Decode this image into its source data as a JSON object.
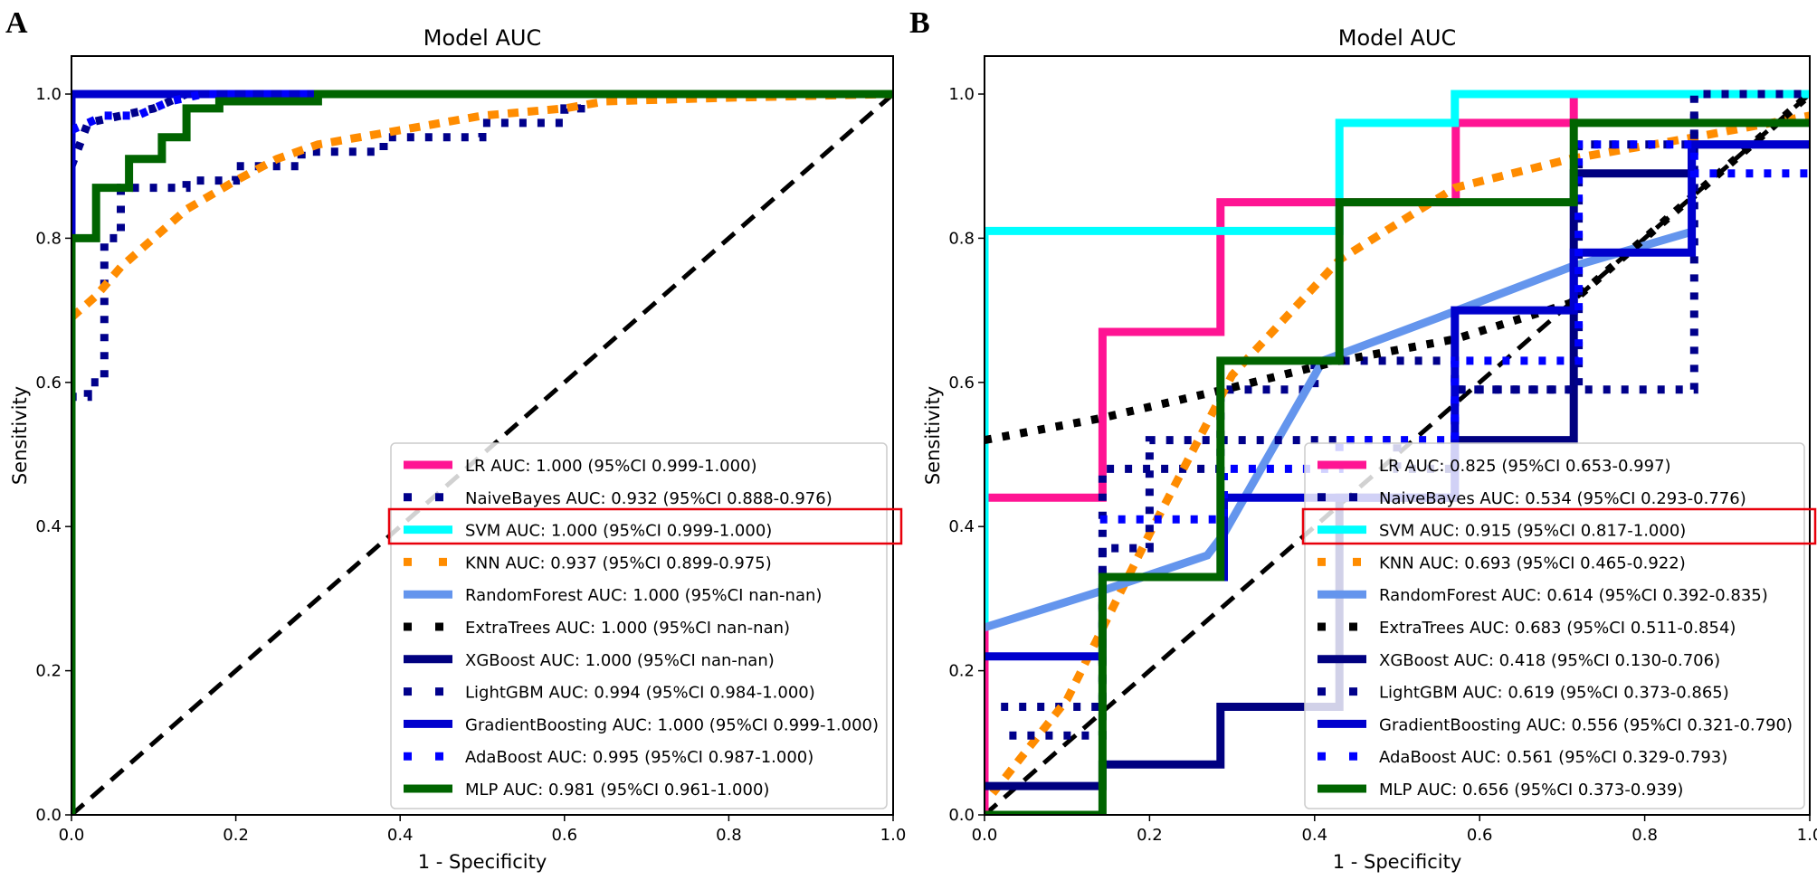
{
  "chart_data": [
    {
      "type": "line",
      "panel": "A",
      "title": "Model AUC",
      "xlabel": "1 - Specificity",
      "ylabel": "Sensitivity",
      "xlim": [
        0,
        1
      ],
      "ylim": [
        0,
        1
      ],
      "xticks": [
        "0.0",
        "0.2",
        "0.4",
        "0.6",
        "0.8",
        "1.0"
      ],
      "yticks": [
        "0.0",
        "0.2",
        "0.4",
        "0.6",
        "0.8",
        "1.0"
      ],
      "legend_position": "lower-right",
      "highlighted_entry": "SVM",
      "series": [
        {
          "name": "LR",
          "label": "LR AUC: 1.000 (95%CI 0.999-1.000)",
          "color": "#ff1493",
          "style": "solid",
          "points": [
            [
              0,
              0
            ],
            [
              0,
              1
            ],
            [
              1,
              1
            ]
          ]
        },
        {
          "name": "NaiveBayes",
          "label": "NaiveBayes AUC: 0.932 (95%CI 0.888-0.976)",
          "color": "#00008b",
          "style": "dotted",
          "points": [
            [
              0,
              0
            ],
            [
              0,
              0.58
            ],
            [
              0.02,
              0.58
            ],
            [
              0.02,
              0.6
            ],
            [
              0.04,
              0.6
            ],
            [
              0.04,
              0.8
            ],
            [
              0.06,
              0.8
            ],
            [
              0.06,
              0.87
            ],
            [
              0.14,
              0.87
            ],
            [
              0.14,
              0.88
            ],
            [
              0.2,
              0.88
            ],
            [
              0.2,
              0.9
            ],
            [
              0.28,
              0.9
            ],
            [
              0.28,
              0.92
            ],
            [
              0.38,
              0.92
            ],
            [
              0.38,
              0.94
            ],
            [
              0.5,
              0.94
            ],
            [
              0.5,
              0.96
            ],
            [
              0.6,
              0.96
            ],
            [
              0.6,
              0.98
            ],
            [
              0.62,
              0.98
            ],
            [
              0.62,
              1
            ],
            [
              1,
              1
            ]
          ]
        },
        {
          "name": "SVM",
          "label": "SVM AUC: 1.000 (95%CI 0.999-1.000)",
          "color": "#00ffff",
          "style": "solid",
          "points": [
            [
              0,
              0
            ],
            [
              0,
              1
            ],
            [
              1,
              1
            ]
          ]
        },
        {
          "name": "KNN",
          "label": "KNN AUC: 0.937 (95%CI 0.899-0.975)",
          "color": "#ff8c00",
          "style": "dashed",
          "points": [
            [
              0,
              0.69
            ],
            [
              0.01,
              0.7
            ],
            [
              0.03,
              0.72
            ],
            [
              0.06,
              0.76
            ],
            [
              0.1,
              0.8
            ],
            [
              0.14,
              0.84
            ],
            [
              0.2,
              0.88
            ],
            [
              0.25,
              0.91
            ],
            [
              0.3,
              0.93
            ],
            [
              0.4,
              0.95
            ],
            [
              0.5,
              0.97
            ],
            [
              0.6,
              0.98
            ],
            [
              0.65,
              0.99
            ],
            [
              0.8,
              0.995
            ],
            [
              1,
              1
            ]
          ]
        },
        {
          "name": "RandomForest",
          "label": "RandomForest AUC: 1.000 (95%CI nan-nan)",
          "color": "#6495ed",
          "style": "solid",
          "points": [
            [
              0,
              0
            ],
            [
              0,
              1
            ],
            [
              1,
              1
            ]
          ]
        },
        {
          "name": "ExtraTrees",
          "label": "ExtraTrees AUC: 1.000 (95%CI nan-nan)",
          "color": "#000000",
          "style": "dotted",
          "points": [
            [
              0,
              0
            ],
            [
              0,
              1
            ],
            [
              1,
              1
            ]
          ]
        },
        {
          "name": "XGBoost",
          "label": "XGBoost AUC: 1.000 (95%CI nan-nan)",
          "color": "#000080",
          "style": "solid",
          "points": [
            [
              0,
              0
            ],
            [
              0,
              1
            ],
            [
              1,
              1
            ]
          ]
        },
        {
          "name": "LightGBM",
          "label": "LightGBM AUC: 0.994 (95%CI 0.984-1.000)",
          "color": "#00008b",
          "style": "dotted",
          "points": [
            [
              0,
              0.9
            ],
            [
              0.02,
              0.96
            ],
            [
              0.06,
              0.97
            ],
            [
              0.1,
              0.98
            ],
            [
              0.14,
              1
            ],
            [
              1,
              1
            ]
          ]
        },
        {
          "name": "GradientBoosting",
          "label": "GradientBoosting AUC: 1.000 (95%CI 0.999-1.000)",
          "color": "#0000cd",
          "style": "solid",
          "points": [
            [
              0,
              0
            ],
            [
              0,
              1
            ],
            [
              0.29,
              1
            ],
            [
              1,
              1
            ]
          ]
        },
        {
          "name": "AdaBoost",
          "label": "AdaBoost AUC: 0.995 (95%CI 0.987-1.000)",
          "color": "#0000ff",
          "style": "dotted",
          "points": [
            [
              0,
              0.95
            ],
            [
              0.02,
              0.96
            ],
            [
              0.04,
              0.97
            ],
            [
              0.08,
              0.97
            ],
            [
              0.12,
              0.99
            ],
            [
              0.16,
              1
            ],
            [
              1,
              1
            ]
          ]
        },
        {
          "name": "MLP",
          "label": "MLP AUC: 0.981 (95%CI 0.961-1.000)",
          "color": "#006400",
          "style": "solid",
          "points": [
            [
              0,
              0
            ],
            [
              0,
              0.8
            ],
            [
              0.03,
              0.8
            ],
            [
              0.03,
              0.87
            ],
            [
              0.07,
              0.87
            ],
            [
              0.07,
              0.91
            ],
            [
              0.11,
              0.91
            ],
            [
              0.11,
              0.94
            ],
            [
              0.14,
              0.94
            ],
            [
              0.14,
              0.98
            ],
            [
              0.18,
              0.98
            ],
            [
              0.18,
              0.99
            ],
            [
              0.3,
              0.99
            ],
            [
              0.3,
              1
            ],
            [
              1,
              1
            ]
          ]
        }
      ],
      "reference_line": [
        [
          0,
          0
        ],
        [
          1,
          1
        ]
      ]
    },
    {
      "type": "line",
      "panel": "B",
      "title": "Model AUC",
      "xlabel": "1 - Specificity",
      "ylabel": "Sensitivity",
      "xlim": [
        0,
        1
      ],
      "ylim": [
        0,
        1
      ],
      "xticks": [
        "0.0",
        "0.2",
        "0.4",
        "0.6",
        "0.8",
        "1.0"
      ],
      "yticks": [
        "0.0",
        "0.2",
        "0.4",
        "0.6",
        "0.8",
        "1.0"
      ],
      "legend_position": "lower-right",
      "highlighted_entry": "SVM",
      "series": [
        {
          "name": "LR",
          "label": "LR AUC: 0.825 (95%CI 0.653-0.997)",
          "color": "#ff1493",
          "style": "solid",
          "points": [
            [
              0,
              0
            ],
            [
              0,
              0.44
            ],
            [
              0.143,
              0.44
            ],
            [
              0.143,
              0.67
            ],
            [
              0.286,
              0.67
            ],
            [
              0.286,
              0.85
            ],
            [
              0.571,
              0.85
            ],
            [
              0.571,
              0.96
            ],
            [
              0.714,
              0.96
            ],
            [
              0.714,
              1
            ],
            [
              1,
              1
            ]
          ]
        },
        {
          "name": "NaiveBayes",
          "label": "NaiveBayes AUC: 0.534 (95%CI 0.293-0.776)",
          "color": "#00008b",
          "style": "dotted",
          "points": [
            [
              0.02,
              0.15
            ],
            [
              0.143,
              0.15
            ],
            [
              0.143,
              0.48
            ],
            [
              0.286,
              0.48
            ],
            [
              0.286,
              0.59
            ],
            [
              0.4,
              0.59
            ],
            [
              0.4,
              0.63
            ],
            [
              0.57,
              0.63
            ],
            [
              0.57,
              0.59
            ],
            [
              0.86,
              0.59
            ],
            [
              0.86,
              1
            ],
            [
              1,
              1
            ]
          ]
        },
        {
          "name": "SVM",
          "label": "SVM AUC: 0.915 (95%CI 0.817-1.000)",
          "color": "#00ffff",
          "style": "solid",
          "points": [
            [
              0,
              0.26
            ],
            [
              0,
              0.81
            ],
            [
              0.43,
              0.81
            ],
            [
              0.43,
              0.96
            ],
            [
              0.57,
              0.96
            ],
            [
              0.57,
              1
            ],
            [
              1,
              1
            ]
          ]
        },
        {
          "name": "KNN",
          "label": "KNN AUC: 0.693 (95%CI 0.465-0.922)",
          "color": "#ff8c00",
          "style": "dashed",
          "points": [
            [
              0.01,
              0.03
            ],
            [
              0.1,
              0.16
            ],
            [
              0.2,
              0.39
            ],
            [
              0.3,
              0.61
            ],
            [
              0.43,
              0.77
            ],
            [
              0.57,
              0.87
            ],
            [
              0.71,
              0.91
            ],
            [
              0.86,
              0.94
            ],
            [
              1,
              0.97
            ]
          ]
        },
        {
          "name": "RandomForest",
          "label": "RandomForest AUC: 0.614 (95%CI 0.392-0.835)",
          "color": "#6495ed",
          "style": "solid",
          "points": [
            [
              0,
              0.26
            ],
            [
              0.14,
              0.31
            ],
            [
              0.27,
              0.36
            ],
            [
              0.29,
              0.39
            ],
            [
              0.41,
              0.63
            ],
            [
              0.55,
              0.69
            ],
            [
              0.71,
              0.76
            ],
            [
              0.86,
              0.81
            ]
          ]
        },
        {
          "name": "ExtraTrees",
          "label": "ExtraTrees AUC: 0.683 (95%CI 0.511-0.854)",
          "color": "#000000",
          "style": "dotted",
          "points": [
            [
              0,
              0.52
            ],
            [
              0.14,
              0.55
            ],
            [
              0.29,
              0.59
            ],
            [
              0.43,
              0.63
            ],
            [
              0.57,
              0.66
            ],
            [
              0.71,
              0.71
            ],
            [
              0.86,
              0.86
            ],
            [
              1,
              1
            ]
          ]
        },
        {
          "name": "XGBoost",
          "label": "XGBoost AUC: 0.418 (95%CI 0.130-0.706)",
          "color": "#000080",
          "style": "solid",
          "points": [
            [
              0,
              0.04
            ],
            [
              0.143,
              0.04
            ],
            [
              0.143,
              0.07
            ],
            [
              0.286,
              0.07
            ],
            [
              0.286,
              0.15
            ],
            [
              0.43,
              0.15
            ],
            [
              0.43,
              0.44
            ],
            [
              0.57,
              0.44
            ],
            [
              0.57,
              0.52
            ],
            [
              0.714,
              0.52
            ],
            [
              0.714,
              0.89
            ],
            [
              0.857,
              0.89
            ],
            [
              0.857,
              0.93
            ],
            [
              1,
              0.93
            ]
          ]
        },
        {
          "name": "LightGBM",
          "label": "LightGBM AUC: 0.619 (95%CI 0.373-0.865)",
          "color": "#00008b",
          "style": "dotted",
          "points": [
            [
              0.03,
              0.11
            ],
            [
              0.143,
              0.11
            ],
            [
              0.143,
              0.37
            ],
            [
              0.2,
              0.37
            ],
            [
              0.2,
              0.52
            ],
            [
              0.5,
              0.52
            ],
            [
              0.5,
              0.48
            ],
            [
              0.57,
              0.48
            ],
            [
              0.57,
              0.59
            ],
            [
              0.72,
              0.59
            ],
            [
              0.72,
              0.93
            ],
            [
              0.86,
              0.93
            ],
            [
              0.86,
              1
            ],
            [
              1,
              1
            ]
          ]
        },
        {
          "name": "GradientBoosting",
          "label": "GradientBoosting AUC: 0.556 (95%CI 0.321-0.790)",
          "color": "#0000cd",
          "style": "solid",
          "points": [
            [
              0,
              0.22
            ],
            [
              0.143,
              0.22
            ],
            [
              0.143,
              0.33
            ],
            [
              0.29,
              0.33
            ],
            [
              0.29,
              0.44
            ],
            [
              0.57,
              0.44
            ],
            [
              0.57,
              0.7
            ],
            [
              0.714,
              0.7
            ],
            [
              0.714,
              0.78
            ],
            [
              0.857,
              0.78
            ],
            [
              0.857,
              0.93
            ],
            [
              1,
              0.93
            ]
          ]
        },
        {
          "name": "AdaBoost",
          "label": "AdaBoost AUC: 0.561 (95%CI 0.329-0.793)",
          "color": "#0000ff",
          "style": "dotted",
          "points": [
            [
              0.14,
              0.41
            ],
            [
              0.29,
              0.41
            ],
            [
              0.29,
              0.48
            ],
            [
              0.43,
              0.48
            ],
            [
              0.43,
              0.52
            ],
            [
              0.57,
              0.52
            ],
            [
              0.57,
              0.63
            ],
            [
              0.72,
              0.63
            ],
            [
              0.72,
              0.93
            ],
            [
              0.86,
              0.93
            ],
            [
              0.86,
              0.89
            ],
            [
              1,
              0.89
            ]
          ]
        },
        {
          "name": "MLP",
          "label": "MLP AUC: 0.656 (95%CI 0.373-0.939)",
          "color": "#006400",
          "style": "solid",
          "points": [
            [
              0,
              0
            ],
            [
              0.143,
              0
            ],
            [
              0.143,
              0.33
            ],
            [
              0.286,
              0.33
            ],
            [
              0.286,
              0.63
            ],
            [
              0.43,
              0.63
            ],
            [
              0.43,
              0.85
            ],
            [
              0.714,
              0.85
            ],
            [
              0.714,
              0.96
            ],
            [
              1,
              0.96
            ]
          ]
        }
      ],
      "reference_line": [
        [
          0,
          0
        ],
        [
          1,
          1
        ]
      ]
    }
  ]
}
